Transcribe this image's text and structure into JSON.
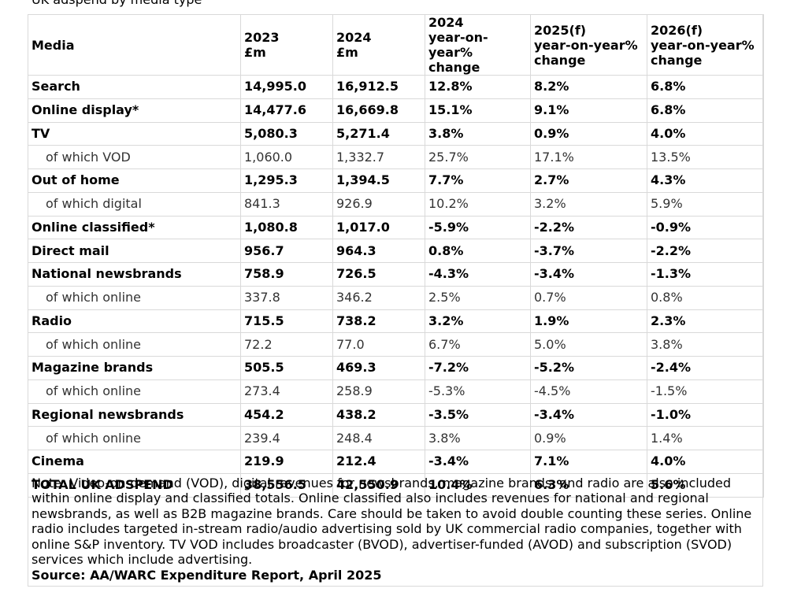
{
  "heading": "UK adspend by media type",
  "table": {
    "headers": [
      "Media",
      "2023\n£m",
      "2024\n£m",
      "2024\nyear-on-year% change",
      "2025(f)\nyear-on-year% change",
      "2026(f)\nyear-on-year% change"
    ],
    "rows": [
      {
        "type": "main",
        "cells": [
          "Search",
          "14,995.0",
          "16,912.5",
          "12.8%",
          "8.2%",
          "6.8%"
        ]
      },
      {
        "type": "main",
        "cells": [
          "Online display*",
          "14,477.6",
          "16,669.8",
          "15.1%",
          "9.1%",
          "6.8%"
        ]
      },
      {
        "type": "main",
        "cells": [
          "TV",
          "5,080.3",
          "5,271.4",
          "3.8%",
          "0.9%",
          "4.0%"
        ]
      },
      {
        "type": "sub",
        "cells": [
          "of which VOD",
          "1,060.0",
          "1,332.7",
          "25.7%",
          "17.1%",
          "13.5%"
        ]
      },
      {
        "type": "main",
        "cells": [
          "Out of home",
          "1,295.3",
          "1,394.5",
          "7.7%",
          "2.7%",
          "4.3%"
        ]
      },
      {
        "type": "sub",
        "cells": [
          "of which digital",
          "841.3",
          "926.9",
          "10.2%",
          "3.2%",
          "5.9%"
        ]
      },
      {
        "type": "main",
        "cells": [
          "Online classified*",
          "1,080.8",
          "1,017.0",
          "-5.9%",
          "-2.2%",
          "-0.9%"
        ]
      },
      {
        "type": "main",
        "cells": [
          "Direct mail",
          "956.7",
          "964.3",
          "0.8%",
          "-3.7%",
          "-2.2%"
        ]
      },
      {
        "type": "main",
        "cells": [
          "National newsbrands",
          "758.9",
          "726.5",
          "-4.3%",
          "-3.4%",
          "-1.3%"
        ]
      },
      {
        "type": "sub",
        "cells": [
          "of which online",
          "337.8",
          "346.2",
          "2.5%",
          "0.7%",
          "0.8%"
        ]
      },
      {
        "type": "main",
        "cells": [
          "Radio",
          "715.5",
          "738.2",
          "3.2%",
          "1.9%",
          "2.3%"
        ]
      },
      {
        "type": "sub",
        "cells": [
          "of which online",
          "72.2",
          "77.0",
          "6.7%",
          "5.0%",
          "3.8%"
        ]
      },
      {
        "type": "main",
        "cells": [
          "Magazine brands",
          "505.5",
          "469.3",
          "-7.2%",
          "-5.2%",
          "-2.4%"
        ]
      },
      {
        "type": "sub",
        "cells": [
          "of which online",
          "273.4",
          "258.9",
          "-5.3%",
          "-4.5%",
          "-1.5%"
        ]
      },
      {
        "type": "main",
        "cells": [
          "Regional newsbrands",
          "454.2",
          "438.2",
          "-3.5%",
          "-3.4%",
          "-1.0%"
        ]
      },
      {
        "type": "sub",
        "cells": [
          "of which online",
          "239.4",
          "248.4",
          "3.8%",
          "0.9%",
          "1.4%"
        ]
      },
      {
        "type": "main",
        "cells": [
          "Cinema",
          "219.9",
          "212.4",
          "-3.4%",
          "7.1%",
          "4.0%"
        ]
      },
      {
        "type": "main",
        "cells": [
          "TOTAL UK ADSPEND",
          "38,556.5",
          "42,550.9",
          "10.4%",
          "6.3%",
          "5.6%"
        ]
      }
    ]
  },
  "note": "Note: Video-on-demand (VOD), digital revenues for newsbrands, magazine brands, and radio are also included within online display and classified totals. Online classified also includes revenues for national and regional newsbrands, as well as B2B magazine brands. Care should be taken to avoid double counting these series. Online radio includes targeted in-stream radio/audio advertising sold by UK commercial radio companies, together with online S&P inventory. TV VOD includes broadcaster (BVOD), advertiser-funded (AVOD) and subscription (SVOD) services which include advertising.",
  "source": "Source: AA/WARC Expenditure Report, April 2025"
}
